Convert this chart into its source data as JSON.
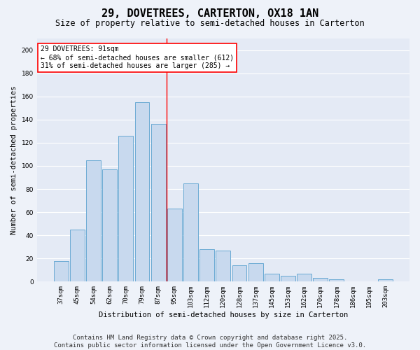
{
  "title": "29, DOVETREES, CARTERTON, OX18 1AN",
  "subtitle": "Size of property relative to semi-detached houses in Carterton",
  "xlabel": "Distribution of semi-detached houses by size in Carterton",
  "ylabel": "Number of semi-detached properties",
  "categories": [
    "37sqm",
    "45sqm",
    "54sqm",
    "62sqm",
    "70sqm",
    "79sqm",
    "87sqm",
    "95sqm",
    "103sqm",
    "112sqm",
    "120sqm",
    "128sqm",
    "137sqm",
    "145sqm",
    "153sqm",
    "162sqm",
    "170sqm",
    "178sqm",
    "186sqm",
    "195sqm",
    "203sqm"
  ],
  "values": [
    18,
    45,
    105,
    97,
    126,
    155,
    136,
    63,
    85,
    28,
    27,
    14,
    16,
    7,
    5,
    7,
    3,
    2,
    0,
    0,
    2
  ],
  "bar_color": "#c8d9ee",
  "bar_edge_color": "#6aaad4",
  "red_line_x": 6.5,
  "annotation_text": "29 DOVETREES: 91sqm\n← 68% of semi-detached houses are smaller (612)\n31% of semi-detached houses are larger (285) →",
  "annotation_box_color": "white",
  "annotation_box_edge_color": "red",
  "ylim": [
    0,
    210
  ],
  "yticks": [
    0,
    20,
    40,
    60,
    80,
    100,
    120,
    140,
    160,
    180,
    200
  ],
  "footer": "Contains HM Land Registry data © Crown copyright and database right 2025.\nContains public sector information licensed under the Open Government Licence v3.0.",
  "background_color": "#eef2f9",
  "plot_background_color": "#e4eaf5",
  "grid_color": "#ffffff",
  "title_fontsize": 11,
  "subtitle_fontsize": 8.5,
  "axis_label_fontsize": 7.5,
  "tick_fontsize": 6.5,
  "annotation_fontsize": 7,
  "footer_fontsize": 6.5
}
